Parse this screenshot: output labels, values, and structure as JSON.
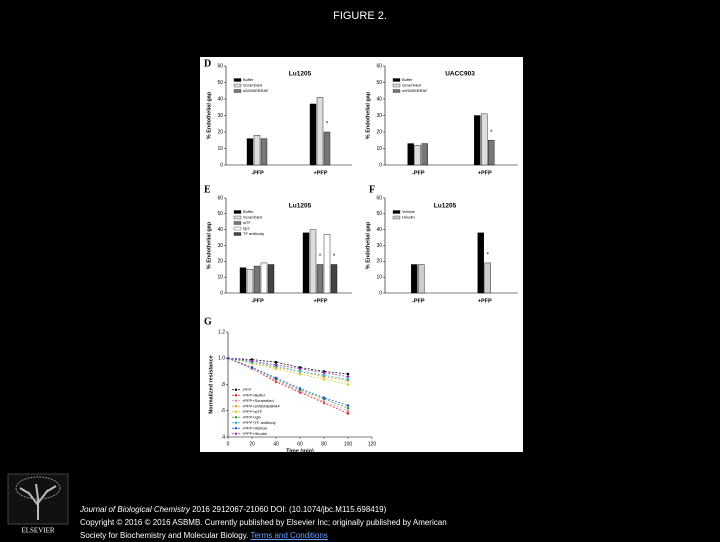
{
  "title": "FIGURE 2.",
  "chart_data": [
    {
      "type": "bar",
      "panel": "D",
      "title": "Lu1205",
      "y_label": "% Endothelial gap",
      "categories": [
        "-PFP",
        "+PFP"
      ],
      "ylim": [
        0,
        60
      ],
      "yticks": [
        0,
        10,
        20,
        30,
        40,
        50,
        60
      ],
      "series": [
        {
          "name": "Buffer",
          "color": "#000000",
          "values": [
            16,
            37
          ]
        },
        {
          "name": "Scrambled",
          "color": "#dddddd",
          "values": [
            18,
            41
          ]
        },
        {
          "name": "siV600EBRAF",
          "color": "#777777",
          "values": [
            16,
            20
          ]
        }
      ],
      "annotations": [
        "*"
      ]
    },
    {
      "type": "bar",
      "title": "UACC903",
      "y_label": "% Endothelial gap",
      "categories": [
        "-PFP",
        "+PFP"
      ],
      "ylim": [
        0,
        60
      ],
      "yticks": [
        0,
        10,
        20,
        30,
        40,
        50,
        60
      ],
      "series": [
        {
          "name": "Buffer",
          "color": "#000000",
          "values": [
            13,
            30
          ]
        },
        {
          "name": "Scrambled",
          "color": "#dddddd",
          "values": [
            12,
            31
          ]
        },
        {
          "name": "siV600EBRAF",
          "color": "#777777",
          "values": [
            13,
            15
          ]
        }
      ],
      "annotations": [
        "*"
      ]
    },
    {
      "type": "bar",
      "panel": "E",
      "title": "Lu1205",
      "y_label": "% Endothelial gap",
      "categories": [
        "-PFP",
        "+PFP"
      ],
      "ylim": [
        0,
        60
      ],
      "yticks": [
        0,
        10,
        20,
        30,
        40,
        50,
        60
      ],
      "series": [
        {
          "name": "Buffer",
          "color": "#000000",
          "values": [
            16,
            38
          ]
        },
        {
          "name": "Scrambled",
          "color": "#dddddd",
          "values": [
            15,
            40
          ]
        },
        {
          "name": "siTF",
          "color": "#777777",
          "values": [
            17,
            18
          ]
        },
        {
          "name": "IgG",
          "color": "#ffffff",
          "values": [
            19,
            37
          ]
        },
        {
          "name": "TF antibody",
          "color": "#444444",
          "values": [
            18,
            18
          ]
        }
      ],
      "annotations": [
        "*",
        "*"
      ]
    },
    {
      "type": "bar",
      "panel": "F",
      "title": "Lu1205",
      "y_label": "% Endothelial gap",
      "categories": [
        "-PFP",
        "+PFP"
      ],
      "ylim": [
        0,
        60
      ],
      "yticks": [
        0,
        10,
        20,
        30,
        40,
        50,
        60
      ],
      "series": [
        {
          "name": "Vehicle",
          "color": "#000000",
          "values": [
            18,
            38
          ]
        },
        {
          "name": "Hirudin",
          "color": "#cccccc",
          "values": [
            18,
            19
          ]
        }
      ],
      "annotations": [
        "*"
      ]
    },
    {
      "type": "line",
      "panel": "G",
      "y_label": "Normalized resistance",
      "x_label": "Time (min)",
      "x": [
        0,
        20,
        40,
        60,
        80,
        100
      ],
      "xlim": [
        0,
        120
      ],
      "xticks": [
        0,
        20,
        40,
        60,
        80,
        100,
        120
      ],
      "ylim": [
        0.4,
        1.2
      ],
      "yticks": [
        {
          "value": 0.4,
          "label": ".4"
        },
        {
          "value": 0.6,
          "label": ".6"
        },
        {
          "value": 0.8,
          "label": ".8"
        },
        {
          "value": 1,
          "label": "1.0"
        },
        1.2
      ],
      "series": [
        {
          "name": "-PFP",
          "color": "#000000",
          "values": [
            1.0,
            0.99,
            0.97,
            0.93,
            0.9,
            0.88
          ]
        },
        {
          "name": "+PFP+Buffer",
          "color": "#d62020",
          "values": [
            1.0,
            0.92,
            0.82,
            0.74,
            0.66,
            0.58
          ]
        },
        {
          "name": "+PFP+Scrambled",
          "color": "#e87fa0",
          "values": [
            1.0,
            0.92,
            0.83,
            0.75,
            0.67,
            0.6
          ]
        },
        {
          "name": "+PFP+siV600EBRAF",
          "color": "#e89a20",
          "values": [
            1.0,
            0.97,
            0.93,
            0.9,
            0.86,
            0.83
          ]
        },
        {
          "name": "+PFP+siTF",
          "color": "#d8c820",
          "values": [
            1.0,
            0.96,
            0.92,
            0.88,
            0.84,
            0.8
          ]
        },
        {
          "name": "+PFP+IgG",
          "color": "#30a040",
          "values": [
            1.0,
            0.93,
            0.84,
            0.76,
            0.69,
            0.62
          ]
        },
        {
          "name": "+PFP+TF antibody",
          "color": "#20b8c8",
          "values": [
            1.0,
            0.97,
            0.94,
            0.9,
            0.87,
            0.84
          ]
        },
        {
          "name": "+PFP+Vehicle",
          "color": "#2050d0",
          "values": [
            1.0,
            0.93,
            0.85,
            0.77,
            0.7,
            0.64
          ]
        },
        {
          "name": "+PFP+Hirudin",
          "color": "#8a30b0",
          "values": [
            1.0,
            0.98,
            0.95,
            0.92,
            0.89,
            0.86
          ]
        }
      ]
    }
  ],
  "footer": {
    "logo": "ELSEVIER",
    "journal": "Journal of Biological Chemistry",
    "line1": "2016 2912067-21060 DOI: (10.1074/jbc.M115.698419)",
    "line2": "Copyright © 2016 © 2016 ASBMB. Currently published by Elsevier Inc; originally published by American",
    "line3": "Society for Biochemistry and Molecular Biology.",
    "link": "Terms and Conditions"
  }
}
